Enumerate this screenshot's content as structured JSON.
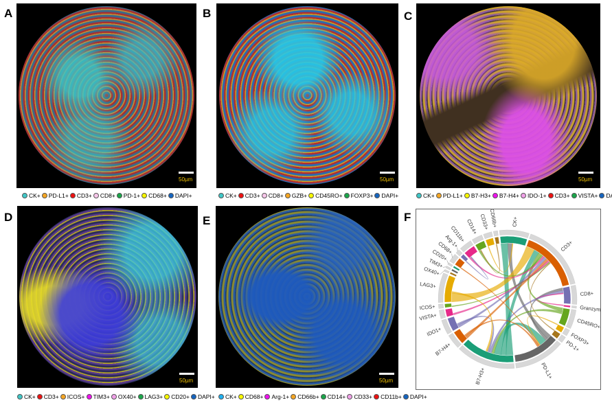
{
  "panels": [
    {
      "letter": "A",
      "scale": "50µm",
      "legend": [
        {
          "label": "CK+",
          "color": "#3fc7c7"
        },
        {
          "label": "PD-L1+",
          "color": "#f5a623"
        },
        {
          "label": "CD3+",
          "color": "#ee1111"
        },
        {
          "label": "CD8+",
          "color": "#f7c6ea"
        },
        {
          "label": "PD-1+",
          "color": "#1aa64a"
        },
        {
          "label": "CD68+",
          "color": "#f7f700"
        },
        {
          "label": "DAPI+",
          "color": "#1565c0"
        }
      ]
    },
    {
      "letter": "B",
      "scale": "50µm",
      "legend": [
        {
          "label": "CK+",
          "color": "#3fc7c7"
        },
        {
          "label": "CD3+",
          "color": "#ee1111"
        },
        {
          "label": "CD8+",
          "color": "#f7c6ea"
        },
        {
          "label": "GZB+",
          "color": "#f5a623"
        },
        {
          "label": "CD45RO+",
          "color": "#f7f700"
        },
        {
          "label": "FOXP3+",
          "color": "#1aa64a"
        },
        {
          "label": "DAPI+",
          "color": "#1565c0"
        }
      ]
    },
    {
      "letter": "C",
      "scale": "50µm",
      "legend": [
        {
          "label": "CK+",
          "color": "#3fc7c7"
        },
        {
          "label": "PD-L1+",
          "color": "#f5a623"
        },
        {
          "label": "B7-H3+",
          "color": "#f7f700"
        },
        {
          "label": "B7-H4+",
          "color": "#ee11ee"
        },
        {
          "label": "IDO-1+",
          "color": "#f0a0e8"
        },
        {
          "label": "CD3+",
          "color": "#ee1111"
        },
        {
          "label": "VISTA+",
          "color": "#1aa64a"
        },
        {
          "label": "DAPI+",
          "color": "#1565c0"
        }
      ]
    },
    {
      "letter": "D",
      "scale": "50µm",
      "legend": [
        {
          "label": "CK+",
          "color": "#3fc7c7"
        },
        {
          "label": "CD3+",
          "color": "#ee1111"
        },
        {
          "label": "ICOS+",
          "color": "#f5a623"
        },
        {
          "label": "TIM3+",
          "color": "#ee11ee"
        },
        {
          "label": "OX40+",
          "color": "#f0a0e8"
        },
        {
          "label": "LAG3+",
          "color": "#1aa64a"
        },
        {
          "label": "CD20+",
          "color": "#f7f700"
        },
        {
          "label": "DAPI+",
          "color": "#1565c0"
        }
      ]
    },
    {
      "letter": "E",
      "scale": "50µm",
      "legend": [
        {
          "label": "CK+",
          "color": "#1fb0f0"
        },
        {
          "label": "CD68+",
          "color": "#f7f700"
        },
        {
          "label": "Arg-1+",
          "color": "#ee11ee"
        },
        {
          "label": "CD66b+",
          "color": "#f5a623"
        },
        {
          "label": "CD14+",
          "color": "#1aa64a"
        },
        {
          "label": "CD33+",
          "color": "#f0a0e8"
        },
        {
          "label": "CD11b+",
          "color": "#ee1111"
        },
        {
          "label": "DAPI+",
          "color": "#1565c0"
        }
      ]
    }
  ],
  "panel_f": {
    "letter": "F",
    "sectors": [
      {
        "label": "CK+",
        "value": 14,
        "color": "#1b9e77"
      },
      {
        "label": "CD3+",
        "value": 32,
        "color": "#d95f02"
      },
      {
        "label": "CD8+",
        "value": 9,
        "color": "#7570b3"
      },
      {
        "label": "GranzymeB+",
        "value": 1,
        "color": "#e7298a"
      },
      {
        "label": "CD45RO+",
        "value": 9,
        "color": "#66a61e"
      },
      {
        "label": "FOXP3+",
        "value": 3,
        "color": "#e6ab02"
      },
      {
        "label": "PD-1+",
        "value": 3,
        "color": "#a6761d"
      },
      {
        "label": "PD-L1+",
        "value": 24,
        "color": "#666666"
      },
      {
        "label": "B7-H3+",
        "value": 28,
        "color": "#1b9e77"
      },
      {
        "label": "B7-H4+",
        "value": 7,
        "color": "#d95f02"
      },
      {
        "label": "IDO1+",
        "value": 7,
        "color": "#7570b3"
      },
      {
        "label": "VISTA+",
        "value": 4,
        "color": "#e7298a"
      },
      {
        "label": "ICOS+",
        "value": 2,
        "color": "#66a61e"
      },
      {
        "label": "LAG3+",
        "value": 14,
        "color": "#e6ab02"
      },
      {
        "label": "OX40+",
        "value": 1,
        "color": "#a6761d"
      },
      {
        "label": "TIM3+",
        "value": 1,
        "color": "#666666"
      },
      {
        "label": "CD20+",
        "value": 1,
        "color": "#1b9e77"
      },
      {
        "label": "CD68+",
        "value": 4,
        "color": "#d95f02"
      },
      {
        "label": "Arg-1+",
        "value": 2,
        "color": "#7570b3"
      },
      {
        "label": "CD11b+",
        "value": 6,
        "color": "#e7298a"
      },
      {
        "label": "CD14+",
        "value": 5,
        "color": "#66a61e"
      },
      {
        "label": "CD33+",
        "value": 4,
        "color": "#e6ab02"
      },
      {
        "label": "CD66b+",
        "value": 2,
        "color": "#a6761d"
      }
    ],
    "chords": [
      [
        "B7-H3+",
        "CK+",
        8
      ],
      [
        "PD-L1+",
        "CK+",
        5
      ],
      [
        "LAG3+",
        "CD3+",
        10
      ],
      [
        "B7-H3+",
        "CD3+",
        6
      ],
      [
        "PD-L1+",
        "CD8+",
        3
      ],
      [
        "CD45RO+",
        "CD3+",
        4
      ],
      [
        "CD14+",
        "CD3+",
        2
      ],
      [
        "CD11b+",
        "CD3+",
        2
      ],
      [
        "IDO1+",
        "CD3+",
        3
      ],
      [
        "B7-H4+",
        "CD3+",
        3
      ],
      [
        "VISTA+",
        "CD3+",
        2
      ],
      [
        "ICOS+",
        "CD3+",
        1
      ],
      [
        "B7-H3+",
        "PD-L1+",
        8
      ],
      [
        "CD45RO+",
        "B7-H3+",
        3
      ],
      [
        "CD8+",
        "B7-H3+",
        3
      ],
      [
        "FOXP3+",
        "PD-L1+",
        1
      ],
      [
        "PD-1+",
        "CD3+",
        1
      ],
      [
        "CD33+",
        "CK+",
        1
      ],
      [
        "CD68+",
        "PD-L1+",
        1
      ],
      [
        "Arg-1+",
        "CD11b+",
        1
      ],
      [
        "CD66b+",
        "CD14+",
        1
      ],
      [
        "GranzymeB+",
        "CD8+",
        1
      ],
      [
        "B7-H4+",
        "PD-L1+",
        2
      ],
      [
        "IDO1+",
        "B7-H3+",
        2
      ],
      [
        "LAG3+",
        "B7-H3+",
        2
      ]
    ]
  }
}
